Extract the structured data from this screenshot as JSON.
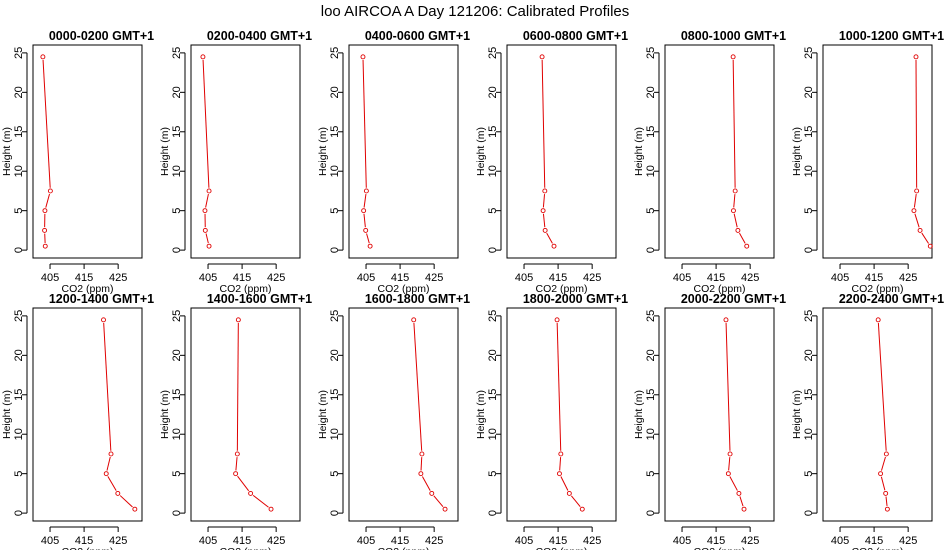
{
  "chart_data": {
    "title": "loo AIRCOA A  Day 121206: Calibrated Profiles",
    "type": "line",
    "xlabel": "CO2 (ppm)",
    "ylabel": "Height (m)",
    "xlim": [
      400,
      432
    ],
    "ylim": [
      0,
      25
    ],
    "xticks": [
      405,
      415,
      425
    ],
    "yticks": [
      0,
      5,
      10,
      15,
      20,
      25
    ],
    "line_color": "#e00000",
    "grid": false,
    "heights": [
      0.5,
      2.5,
      5,
      7.5,
      24.5
    ],
    "panels": [
      {
        "title": "0000-0200 GMT+1",
        "co2": [
          403.6,
          403.4,
          403.5,
          405.1,
          402.9
        ]
      },
      {
        "title": "0200-0400 GMT+1",
        "co2": [
          405.3,
          404.2,
          404.1,
          405.3,
          403.5
        ]
      },
      {
        "title": "0400-0600 GMT+1",
        "co2": [
          406.2,
          404.9,
          404.3,
          405.1,
          404.1
        ]
      },
      {
        "title": "0600-0800 GMT+1",
        "co2": [
          413.8,
          411.2,
          410.6,
          411.1,
          410.3
        ]
      },
      {
        "title": "0800-1000 GMT+1",
        "co2": [
          424.0,
          421.4,
          420.1,
          420.6,
          420.0
        ]
      },
      {
        "title": "1000-1200 GMT+1",
        "co2": [
          431.5,
          428.5,
          426.7,
          427.5,
          427.3
        ]
      },
      {
        "title": "1200-1400 GMT+1",
        "co2": [
          429.9,
          424.9,
          421.5,
          422.9,
          420.7
        ]
      },
      {
        "title": "1400-1600 GMT+1",
        "co2": [
          423.5,
          417.5,
          413.1,
          413.6,
          413.9
        ]
      },
      {
        "title": "1600-1800 GMT+1",
        "co2": [
          428.2,
          424.3,
          421.1,
          421.4,
          419.0
        ]
      },
      {
        "title": "1800-2000 GMT+1",
        "co2": [
          422.1,
          418.3,
          415.4,
          415.8,
          414.7
        ]
      },
      {
        "title": "2000-2200 GMT+1",
        "co2": [
          423.2,
          421.7,
          418.6,
          419.1,
          417.9
        ]
      },
      {
        "title": "2200-2400 GMT+1",
        "co2": [
          418.9,
          418.4,
          416.9,
          418.6,
          416.2
        ]
      }
    ]
  }
}
